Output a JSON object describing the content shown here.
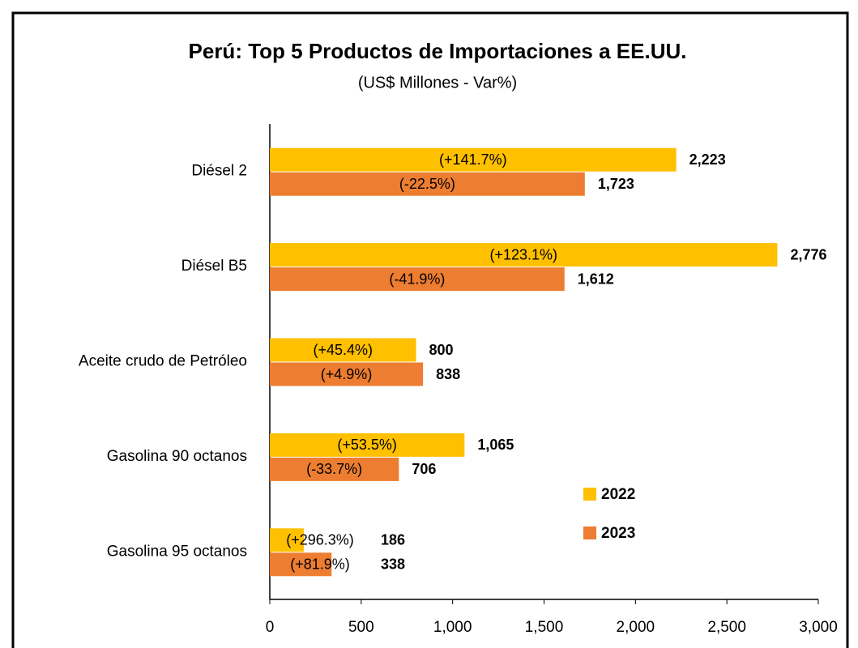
{
  "chart_data": {
    "type": "barh",
    "title": "Perú: Top 5 Productos de Importaciones a EE.UU.",
    "subtitle": "(US$ Millones - Var%)",
    "categories": [
      "Diésel 2",
      "Diésel B5",
      "Aceite crudo de Petróleo",
      "Gasolina 90 octanos",
      "Gasolina 95 octanos"
    ],
    "series": [
      {
        "name": "2022",
        "color": "#FFC000",
        "values": [
          2223,
          2776,
          800,
          1065,
          186
        ],
        "value_labels": [
          "2,223",
          "2,776",
          "800",
          "1,065",
          "186"
        ],
        "annotations": [
          "(+141.7%)",
          "(+123.1%)",
          "(+45.4%)",
          "(+53.5%)",
          "(+296.3%)"
        ]
      },
      {
        "name": "2023",
        "color": "#ED7D31",
        "values": [
          1723,
          1612,
          838,
          706,
          338
        ],
        "value_labels": [
          "1,723",
          "1,612",
          "838",
          "706",
          "338"
        ],
        "annotations": [
          "(-22.5%)",
          "(-41.9%)",
          "(+4.9%)",
          "(-33.7%)",
          "(+81.9%)"
        ]
      }
    ],
    "xlim": [
      0,
      3000
    ],
    "xticks": [
      0,
      500,
      {
        "value": 1000,
        "label": "1,000"
      },
      {
        "value": 1500,
        "label": "1,500"
      },
      {
        "value": 2000,
        "label": "2,000"
      },
      {
        "value": 2500,
        "label": "2,500"
      },
      {
        "value": 3000,
        "label": "3,000"
      }
    ],
    "legend": "right"
  }
}
